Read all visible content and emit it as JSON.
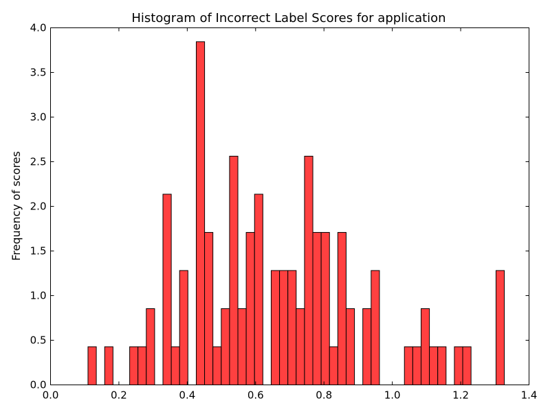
{
  "chart_data": {
    "type": "bar",
    "title": "Histogram of Incorrect Label Scores for application",
    "xlabel": "",
    "ylabel": "Frequency of scores",
    "xlim": [
      0.0,
      1.4
    ],
    "ylim": [
      0.0,
      4.0
    ],
    "x_ticks": [
      "0.0",
      "0.2",
      "0.4",
      "0.6",
      "0.8",
      "1.0",
      "1.2",
      "1.4"
    ],
    "y_ticks": [
      "0.0",
      "0.5",
      "1.0",
      "1.5",
      "2.0",
      "2.5",
      "3.0",
      "3.5",
      "4.0"
    ],
    "bin_width": 0.02436,
    "bar_color": "#ff4040",
    "grid": false,
    "bins": [
      {
        "x0": 0.1096,
        "value": 0.427
      },
      {
        "x0": 0.1584,
        "value": 0.427
      },
      {
        "x0": 0.2315,
        "value": 0.427
      },
      {
        "x0": 0.2558,
        "value": 0.427
      },
      {
        "x0": 0.2802,
        "value": 0.854
      },
      {
        "x0": 0.3289,
        "value": 2.136
      },
      {
        "x0": 0.3533,
        "value": 0.427
      },
      {
        "x0": 0.3776,
        "value": 1.281
      },
      {
        "x0": 0.4264,
        "value": 3.844
      },
      {
        "x0": 0.4507,
        "value": 1.708
      },
      {
        "x0": 0.4751,
        "value": 0.427
      },
      {
        "x0": 0.4995,
        "value": 0.854
      },
      {
        "x0": 0.5238,
        "value": 2.562
      },
      {
        "x0": 0.5482,
        "value": 0.854
      },
      {
        "x0": 0.5725,
        "value": 1.708
      },
      {
        "x0": 0.5969,
        "value": 2.136
      },
      {
        "x0": 0.6456,
        "value": 1.281
      },
      {
        "x0": 0.67,
        "value": 1.281
      },
      {
        "x0": 0.6944,
        "value": 1.281
      },
      {
        "x0": 0.7187,
        "value": 0.854
      },
      {
        "x0": 0.7431,
        "value": 2.562
      },
      {
        "x0": 0.7674,
        "value": 1.708
      },
      {
        "x0": 0.7918,
        "value": 1.708
      },
      {
        "x0": 0.8162,
        "value": 0.427
      },
      {
        "x0": 0.8405,
        "value": 1.708
      },
      {
        "x0": 0.8649,
        "value": 0.854
      },
      {
        "x0": 0.9136,
        "value": 0.854
      },
      {
        "x0": 0.938,
        "value": 1.281
      },
      {
        "x0": 1.0354,
        "value": 0.427
      },
      {
        "x0": 1.0598,
        "value": 0.427
      },
      {
        "x0": 1.0842,
        "value": 0.854
      },
      {
        "x0": 1.1085,
        "value": 0.427
      },
      {
        "x0": 1.1329,
        "value": 0.427
      },
      {
        "x0": 1.1816,
        "value": 0.427
      },
      {
        "x0": 1.206,
        "value": 0.427
      },
      {
        "x0": 1.3034,
        "value": 1.281
      }
    ]
  }
}
